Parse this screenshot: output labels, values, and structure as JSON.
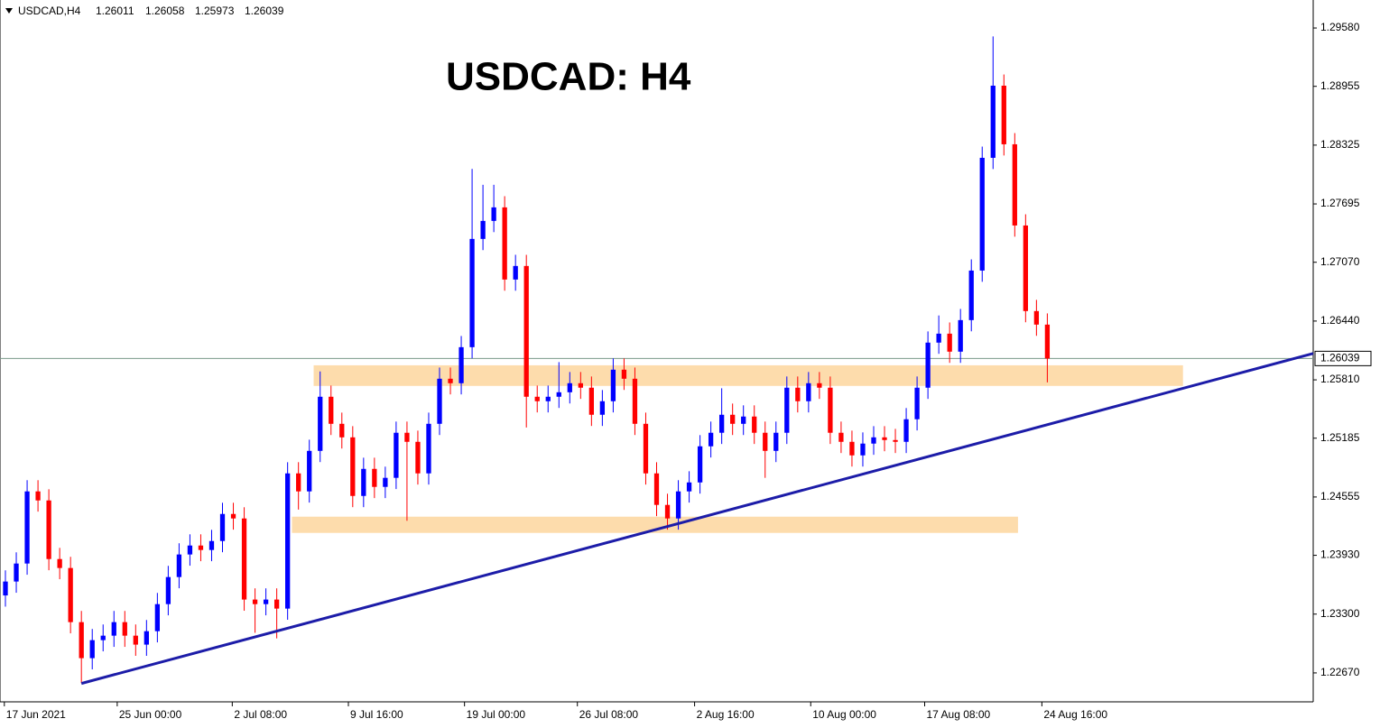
{
  "chart_data": {
    "type": "candlestick",
    "symbol": "USDCAD,H4",
    "ohlc": [
      1.26011,
      1.26058,
      1.25973,
      1.26039
    ],
    "title": "USDCAD: H4",
    "last_price": 1.26039,
    "up_color": "#0000ff",
    "down_color": "#ff0000",
    "open": [
      1.235,
      1.23649,
      1.23842,
      1.24615,
      1.24518,
      1.2389,
      1.23794,
      1.23214,
      1.22828,
      1.23021,
      1.23069,
      1.23214,
      1.23069,
      1.22973,
      1.23117,
      1.23407,
      1.23697,
      1.23939,
      1.24035,
      1.23987,
      1.24083,
      1.24373,
      1.24325,
      1.23456,
      1.23407,
      1.23456,
      1.23359,
      1.24808,
      1.24615,
      1.25049,
      1.25629,
      1.25339,
      1.25194,
      1.24566,
      1.24856,
      1.24663,
      1.2476,
      1.25243,
      1.25146,
      1.24808,
      1.25339,
      1.25822,
      1.25774,
      1.2616,
      1.2732,
      1.27513,
      1.27658,
      1.26885,
      1.2703,
      1.25629,
      1.25581,
      1.25629,
      1.25677,
      1.25774,
      1.25726,
      1.25436,
      1.25581,
      1.25919,
      1.25822,
      1.25339,
      1.24808,
      1.2447,
      1.24325,
      1.24615,
      1.24711,
      1.25098,
      1.25243,
      1.25436,
      1.25339,
      1.25417,
      1.25243,
      1.25049,
      1.25243,
      1.25726,
      1.25581,
      1.25774,
      1.25726,
      1.25243,
      1.25146,
      1.25001,
      1.25127,
      1.25194,
      1.25165,
      1.25146,
      1.25388,
      1.25726,
      1.26209,
      1.26305,
      1.26112,
      1.2645,
      1.26981,
      1.28189,
      1.28962,
      1.28334,
      1.27464,
      1.26547,
      1.26402
    ],
    "high": [
      1.23769,
      1.23962,
      1.24735,
      1.24735,
      1.24638,
      1.2401,
      1.23914,
      1.23334,
      1.23141,
      1.23189,
      1.23334,
      1.23334,
      1.23189,
      1.23237,
      1.23527,
      1.23817,
      1.24059,
      1.24155,
      1.24155,
      1.24203,
      1.24493,
      1.24493,
      1.24445,
      1.23576,
      1.23576,
      1.23576,
      1.24928,
      1.24928,
      1.25169,
      1.259,
      1.25749,
      1.25459,
      1.25314,
      1.24976,
      1.24976,
      1.2488,
      1.25363,
      1.25363,
      1.25266,
      1.25459,
      1.25942,
      1.25942,
      1.2628,
      1.2807,
      1.279,
      1.279,
      1.27778,
      1.2715,
      1.2715,
      1.25749,
      1.25749,
      1.26,
      1.25894,
      1.25894,
      1.25846,
      1.25701,
      1.26039,
      1.26039,
      1.25942,
      1.25459,
      1.24928,
      1.2459,
      1.24735,
      1.24831,
      1.25218,
      1.25363,
      1.2572,
      1.25556,
      1.25537,
      1.25537,
      1.25363,
      1.25363,
      1.25846,
      1.25846,
      1.25894,
      1.25894,
      1.25846,
      1.25363,
      1.25266,
      1.25247,
      1.25314,
      1.25314,
      1.25285,
      1.25508,
      1.25846,
      1.26329,
      1.265,
      1.26425,
      1.2657,
      1.27101,
      1.28309,
      1.2949,
      1.29082,
      1.28454,
      1.27584,
      1.26667,
      1.26522
    ],
    "low": [
      1.2338,
      1.23529,
      1.23722,
      1.24398,
      1.2377,
      1.23674,
      1.23094,
      1.2256,
      1.22708,
      1.22901,
      1.22949,
      1.22949,
      1.22853,
      1.22853,
      1.22997,
      1.23287,
      1.23577,
      1.23819,
      1.23867,
      1.23867,
      1.23963,
      1.24205,
      1.23336,
      1.231,
      1.23287,
      1.2304,
      1.23239,
      1.2442,
      1.24495,
      1.24929,
      1.25219,
      1.25074,
      1.24446,
      1.24446,
      1.24543,
      1.24543,
      1.2464,
      1.243,
      1.24688,
      1.24688,
      1.25219,
      1.25654,
      1.25654,
      1.2604,
      1.272,
      1.27393,
      1.26765,
      1.26765,
      1.253,
      1.25461,
      1.25461,
      1.25509,
      1.25557,
      1.25606,
      1.25316,
      1.25316,
      1.25461,
      1.25702,
      1.25219,
      1.24688,
      1.2435,
      1.24205,
      1.24205,
      1.24495,
      1.24591,
      1.24978,
      1.25123,
      1.25219,
      1.25219,
      1.25123,
      1.2476,
      1.24929,
      1.25123,
      1.25461,
      1.25461,
      1.25606,
      1.25123,
      1.25026,
      1.24881,
      1.24881,
      1.25007,
      1.25045,
      1.25026,
      1.25026,
      1.25268,
      1.25606,
      1.26089,
      1.25992,
      1.25992,
      1.2633,
      1.26861,
      1.28069,
      1.28214,
      1.27344,
      1.26427,
      1.26282,
      1.25783
    ],
    "close": [
      1.23649,
      1.23842,
      1.24615,
      1.24518,
      1.2389,
      1.23794,
      1.23214,
      1.22828,
      1.23021,
      1.23069,
      1.23214,
      1.23069,
      1.22973,
      1.23117,
      1.23407,
      1.23697,
      1.23939,
      1.24035,
      1.23987,
      1.24083,
      1.24373,
      1.24325,
      1.23456,
      1.23407,
      1.23456,
      1.23359,
      1.24808,
      1.24615,
      1.25049,
      1.25629,
      1.25339,
      1.25194,
      1.24566,
      1.24856,
      1.24663,
      1.2476,
      1.25243,
      1.25146,
      1.24808,
      1.25339,
      1.25822,
      1.25774,
      1.2616,
      1.2732,
      1.27513,
      1.27658,
      1.26885,
      1.2703,
      1.25629,
      1.25581,
      1.25629,
      1.25677,
      1.25774,
      1.25726,
      1.25436,
      1.25581,
      1.25919,
      1.25822,
      1.25339,
      1.24808,
      1.2447,
      1.24325,
      1.24615,
      1.24711,
      1.25098,
      1.25243,
      1.25436,
      1.25339,
      1.25417,
      1.25243,
      1.25049,
      1.25243,
      1.25726,
      1.25581,
      1.25774,
      1.25726,
      1.25243,
      1.25146,
      1.25001,
      1.25127,
      1.25194,
      1.25165,
      1.25146,
      1.25388,
      1.25726,
      1.26209,
      1.26305,
      1.26112,
      1.2645,
      1.26981,
      1.28189,
      1.28962,
      1.28334,
      1.27464,
      1.26547,
      1.26402,
      1.26039
    ],
    "xlim": [
      0,
      121
    ],
    "ylim": [
      1.2236,
      1.2988
    ],
    "yticks": [
      {
        "value": 1.2958,
        "label": "1.29580"
      },
      {
        "value": 1.28955,
        "label": "1.28955"
      },
      {
        "value": 1.28325,
        "label": "1.28325"
      },
      {
        "value": 1.27695,
        "label": "1.27695"
      },
      {
        "value": 1.2707,
        "label": "1.27070"
      },
      {
        "value": 1.2644,
        "label": "1.26440"
      },
      {
        "value": 1.2581,
        "label": "1.25810"
      },
      {
        "value": 1.25185,
        "label": "1.25185"
      },
      {
        "value": 1.24555,
        "label": "1.24555"
      },
      {
        "value": 1.2393,
        "label": "1.23930"
      },
      {
        "value": 1.233,
        "label": "1.23300"
      },
      {
        "value": 1.2267,
        "label": "1.22670"
      }
    ],
    "xticks": [
      {
        "value": 0.4,
        "label": "17 Jun 2021"
      },
      {
        "value": 10.8,
        "label": "25 Jun 00:00"
      },
      {
        "value": 21.4,
        "label": "2 Jul 08:00"
      },
      {
        "value": 32.1,
        "label": "9 Jul 16:00"
      },
      {
        "value": 42.8,
        "label": "19 Jul 00:00"
      },
      {
        "value": 53.2,
        "label": "26 Jul 08:00"
      },
      {
        "value": 64.0,
        "label": "2 Aug 16:00"
      },
      {
        "value": 74.7,
        "label": "10 Aug 00:00"
      },
      {
        "value": 85.2,
        "label": "17 Aug 08:00"
      },
      {
        "value": 96.0,
        "label": "24 Aug 16:00"
      }
    ],
    "zone_color": "#fddcac",
    "zones": [
      {
        "x": [
          28.9,
          109.0
        ],
        "y": [
          1.25966,
          1.25745
        ]
      },
      {
        "x": [
          26.9,
          93.8
        ],
        "y": [
          1.24344,
          1.2417
        ]
      }
    ],
    "trendline": {
      "color": "#1c1ca8",
      "x": [
        7.5,
        121
      ],
      "y": [
        1.22557,
        1.26093
      ]
    }
  }
}
